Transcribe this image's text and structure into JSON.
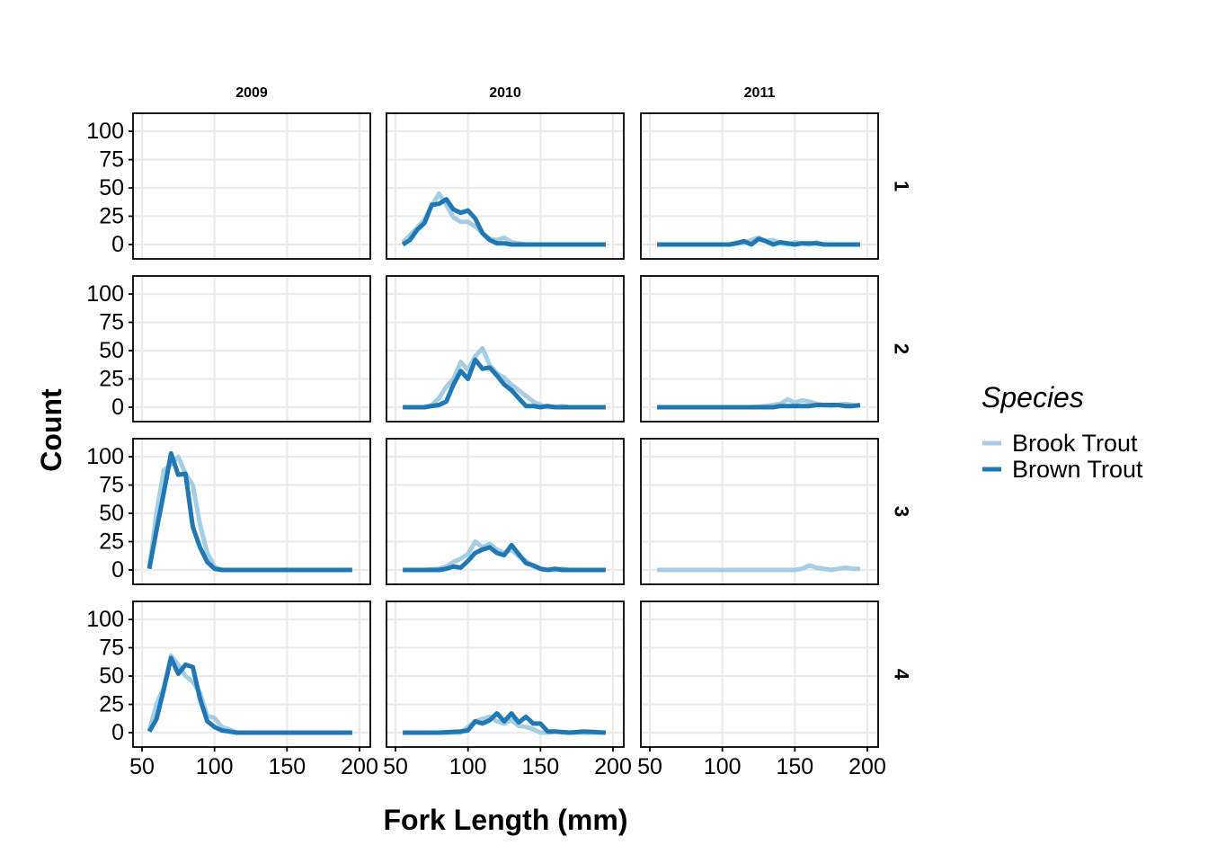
{
  "chart_data": {
    "type": "line",
    "xlabel": "Fork Length (mm)",
    "ylabel": "Count",
    "xlim": [
      50,
      200
    ],
    "ylim": [
      0,
      108
    ],
    "x_ticks": [
      50,
      100,
      150,
      200
    ],
    "y_ticks": [
      0,
      25,
      50,
      75,
      100
    ],
    "grid": true,
    "columns": [
      "2009",
      "2010",
      "2011"
    ],
    "rows": [
      "1",
      "2",
      "3",
      "4"
    ],
    "legend": {
      "title": "Species",
      "placement": "right",
      "entries": [
        {
          "name": "Brook Trout",
          "color": "#a6cee3"
        },
        {
          "name": "Brown Trout",
          "color": "#1f78b4"
        }
      ]
    },
    "panels": [
      {
        "column": "2010",
        "row": "1",
        "series": [
          {
            "name": "Brook Trout",
            "x": [
              55,
              60,
              65,
              70,
              75,
              80,
              85,
              90,
              95,
              100,
              105,
              110,
              115,
              120,
              125,
              130,
              135,
              140,
              150,
              160,
              170,
              180,
              195
            ],
            "y": [
              2,
              8,
              15,
              22,
              34,
              45,
              35,
              24,
              20,
              20,
              16,
              10,
              5,
              4,
              6,
              2,
              1,
              0,
              0,
              0,
              0,
              0,
              0
            ]
          },
          {
            "name": "Brown Trout",
            "x": [
              55,
              60,
              65,
              70,
              75,
              80,
              85,
              90,
              95,
              100,
              105,
              110,
              115,
              120,
              125,
              130,
              135,
              140,
              150,
              160,
              170,
              180,
              195
            ],
            "y": [
              0,
              4,
              13,
              19,
              35,
              36,
              40,
              31,
              28,
              30,
              23,
              10,
              4,
              1,
              1,
              0,
              0,
              0,
              0,
              0,
              0,
              0,
              0
            ]
          }
        ]
      },
      {
        "column": "2011",
        "row": "1",
        "series": [
          {
            "name": "Brook Trout",
            "x": [
              55,
              70,
              90,
              105,
              110,
              115,
              120,
              125,
              130,
              135,
              140,
              145,
              150,
              155,
              160,
              165,
              170,
              175,
              180,
              195
            ],
            "y": [
              0,
              0,
              0,
              0,
              2,
              1,
              4,
              6,
              3,
              4,
              1,
              0,
              2,
              1,
              0,
              2,
              0,
              0,
              0,
              0
            ]
          },
          {
            "name": "Brown Trout",
            "x": [
              55,
              70,
              90,
              105,
              110,
              115,
              120,
              125,
              130,
              135,
              140,
              145,
              150,
              155,
              160,
              165,
              170,
              175,
              180,
              195
            ],
            "y": [
              0,
              0,
              0,
              0,
              1,
              3,
              0,
              5,
              3,
              0,
              2,
              1,
              0,
              1,
              1,
              1,
              0,
              0,
              0,
              0
            ]
          }
        ]
      },
      {
        "column": "2010",
        "row": "2",
        "series": [
          {
            "name": "Brook Trout",
            "x": [
              55,
              70,
              75,
              80,
              85,
              90,
              95,
              100,
              105,
              110,
              115,
              120,
              125,
              130,
              135,
              140,
              145,
              150,
              155,
              160,
              165,
              170,
              180,
              195
            ],
            "y": [
              0,
              0,
              2,
              8,
              18,
              25,
              40,
              33,
              45,
              52,
              37,
              30,
              26,
              20,
              15,
              10,
              5,
              2,
              0,
              0,
              1,
              0,
              0,
              0
            ]
          },
          {
            "name": "Brown Trout",
            "x": [
              55,
              70,
              75,
              80,
              85,
              90,
              95,
              100,
              105,
              110,
              115,
              120,
              125,
              130,
              135,
              140,
              145,
              150,
              155,
              160,
              165,
              170,
              180,
              195
            ],
            "y": [
              0,
              0,
              1,
              2,
              5,
              20,
              32,
              25,
              42,
              34,
              35,
              28,
              20,
              15,
              8,
              1,
              1,
              0,
              1,
              0,
              0,
              0,
              0,
              0
            ]
          }
        ]
      },
      {
        "column": "2011",
        "row": "2",
        "series": [
          {
            "name": "Brook Trout",
            "x": [
              55,
              90,
              120,
              130,
              135,
              140,
              145,
              150,
              155,
              160,
              165,
              170,
              175,
              180,
              185,
              190,
              195
            ],
            "y": [
              0,
              0,
              0,
              1,
              2,
              3,
              7,
              4,
              6,
              5,
              3,
              2,
              1,
              2,
              3,
              2,
              1
            ]
          },
          {
            "name": "Brown Trout",
            "x": [
              55,
              90,
              120,
              130,
              135,
              140,
              145,
              150,
              155,
              160,
              165,
              170,
              175,
              180,
              185,
              190,
              195
            ],
            "y": [
              0,
              0,
              0,
              0,
              0,
              1,
              1,
              1,
              1,
              1,
              2,
              2,
              2,
              2,
              1,
              1,
              2
            ]
          }
        ]
      },
      {
        "column": "2009",
        "row": "3",
        "series": [
          {
            "name": "Brook Trout",
            "x": [
              55,
              60,
              65,
              70,
              75,
              80,
              85,
              90,
              95,
              100,
              105,
              110,
              120,
              150,
              195
            ],
            "y": [
              2,
              50,
              88,
              93,
              100,
              85,
              75,
              40,
              15,
              3,
              0,
              0,
              0,
              0,
              0
            ]
          },
          {
            "name": "Brown Trout",
            "x": [
              55,
              60,
              65,
              70,
              75,
              80,
              85,
              90,
              95,
              100,
              105,
              110,
              120,
              150,
              195
            ],
            "y": [
              1,
              35,
              68,
              103,
              84,
              85,
              38,
              20,
              7,
              1,
              0,
              0,
              0,
              0,
              0
            ]
          }
        ]
      },
      {
        "column": "2010",
        "row": "3",
        "series": [
          {
            "name": "Brook Trout",
            "x": [
              55,
              70,
              80,
              85,
              90,
              95,
              100,
              105,
              110,
              115,
              120,
              125,
              130,
              135,
              140,
              145,
              150,
              155,
              160,
              165,
              170,
              180,
              195
            ],
            "y": [
              0,
              0,
              1,
              3,
              7,
              10,
              14,
              25,
              20,
              23,
              18,
              15,
              18,
              12,
              8,
              3,
              1,
              0,
              0,
              1,
              0,
              0,
              0
            ]
          },
          {
            "name": "Brown Trout",
            "x": [
              55,
              70,
              80,
              85,
              90,
              95,
              100,
              105,
              110,
              115,
              120,
              125,
              130,
              135,
              140,
              145,
              150,
              155,
              160,
              165,
              170,
              180,
              195
            ],
            "y": [
              0,
              0,
              0,
              1,
              3,
              2,
              8,
              15,
              18,
              20,
              15,
              13,
              22,
              14,
              6,
              4,
              1,
              0,
              1,
              0,
              0,
              0,
              0
            ]
          }
        ]
      },
      {
        "column": "2011",
        "row": "3",
        "series": [
          {
            "name": "Brook Trout",
            "x": [
              55,
              80,
              110,
              140,
              150,
              155,
              160,
              165,
              170,
              175,
              180,
              185,
              190,
              195
            ],
            "y": [
              0,
              0,
              0,
              0,
              0,
              1,
              4,
              2,
              1,
              0,
              1,
              2,
              1,
              1
            ]
          }
        ]
      },
      {
        "column": "2009",
        "row": "4",
        "series": [
          {
            "name": "Brook Trout",
            "x": [
              55,
              60,
              65,
              70,
              75,
              80,
              85,
              90,
              95,
              100,
              105,
              110,
              115,
              120,
              150,
              195
            ],
            "y": [
              2,
              25,
              40,
              68,
              60,
              50,
              45,
              35,
              15,
              13,
              5,
              3,
              0,
              0,
              0,
              0
            ]
          },
          {
            "name": "Brown Trout",
            "x": [
              55,
              60,
              65,
              70,
              75,
              80,
              85,
              90,
              95,
              100,
              105,
              110,
              115,
              120,
              150,
              195
            ],
            "y": [
              1,
              12,
              38,
              66,
              52,
              60,
              58,
              30,
              10,
              5,
              2,
              1,
              0,
              0,
              0,
              0
            ]
          }
        ]
      },
      {
        "column": "2010",
        "row": "4",
        "series": [
          {
            "name": "Brook Trout",
            "x": [
              55,
              80,
              95,
              100,
              105,
              110,
              115,
              120,
              125,
              130,
              135,
              140,
              145,
              150,
              155,
              160,
              170,
              180,
              195
            ],
            "y": [
              0,
              0,
              0,
              5,
              10,
              12,
              14,
              10,
              8,
              11,
              6,
              5,
              3,
              0,
              0,
              1,
              0,
              0,
              0
            ]
          },
          {
            "name": "Brown Trout",
            "x": [
              55,
              80,
              95,
              100,
              105,
              110,
              115,
              120,
              125,
              130,
              135,
              140,
              145,
              150,
              155,
              160,
              170,
              180,
              195
            ],
            "y": [
              0,
              0,
              1,
              2,
              10,
              8,
              11,
              17,
              10,
              17,
              9,
              14,
              8,
              8,
              1,
              1,
              0,
              1,
              0
            ]
          }
        ]
      }
    ]
  }
}
